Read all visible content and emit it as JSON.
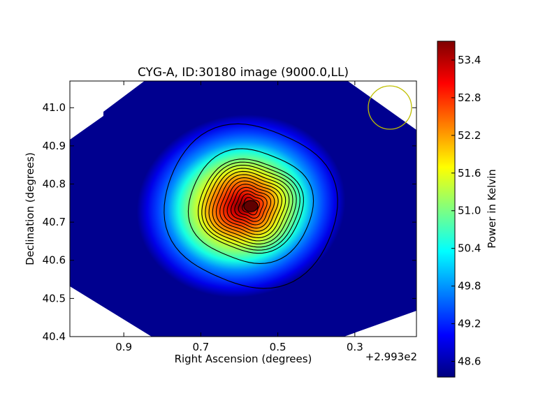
{
  "chart_data": {
    "type": "heatmap",
    "title": "CYG-A, ID:30180 image (9000.0,LL)",
    "xlabel": "Right Ascension (degrees)",
    "ylabel": "Declination (degrees)",
    "x_offset_label": "+2.993e2",
    "x_ticks": [
      "0.9",
      "0.7",
      "0.5",
      "0.3"
    ],
    "x_tick_values": [
      0.9,
      0.7,
      0.5,
      0.3
    ],
    "xlim": [
      1.04,
      0.14
    ],
    "y_ticks": [
      "40.4",
      "40.5",
      "40.6",
      "40.7",
      "40.8",
      "40.9",
      "41.0"
    ],
    "y_tick_values": [
      40.4,
      40.5,
      40.6,
      40.7,
      40.8,
      40.9,
      41.0
    ],
    "ylim": [
      40.4,
      41.07
    ],
    "colorbar": {
      "label": "Power in Kelvin",
      "ticks": [
        "48.6",
        "49.2",
        "49.8",
        "50.4",
        "51.0",
        "51.6",
        "52.2",
        "52.8",
        "53.4"
      ],
      "tick_values": [
        48.6,
        49.2,
        49.8,
        50.4,
        51.0,
        51.6,
        52.2,
        52.8,
        53.4
      ],
      "range": [
        48.35,
        53.7
      ],
      "colormap": "jet"
    },
    "source": {
      "peak_ra": 0.57,
      "peak_dec": 40.742,
      "peak_value": 53.6,
      "background_value": 48.4
    },
    "contour_count": 15,
    "beam": {
      "ra": 0.2,
      "dec": 41.0,
      "radius_deg": 0.056,
      "color": "#bfbf00"
    },
    "grid": false
  }
}
